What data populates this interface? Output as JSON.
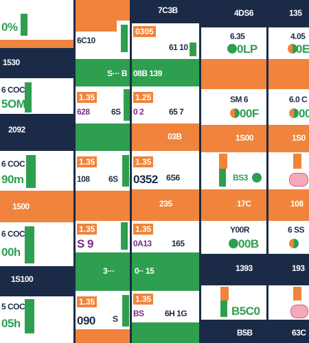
{
  "col1": {
    "r1_value": "0%",
    "r2_header": "1530",
    "r3_code": "6 COC",
    "r3_value": "5OM",
    "r4_header": "2092",
    "r5_code": "6 COC",
    "r5_value": "90m",
    "r6_header": "1500",
    "r7_code": "6 COC",
    "r7_value": "00h",
    "r8_header": "1S100",
    "r9_code": "5 COC",
    "r9_value": "05h"
  },
  "col2": {
    "r1_label": "6C10",
    "r2_label": "S··· B",
    "r3_tag": "1.35",
    "r3_value": "628",
    "r3_side": "6S",
    "r5_tag": "1.35",
    "r5_value": "108",
    "r5_side": "6S",
    "r7_tag": "1.35",
    "r7_value": "S 9",
    "r8_label": "3···",
    "r9_tag": "1.35",
    "r9_value": "090",
    "r9_side": "S"
  },
  "col3": {
    "r0_header": "7C3B",
    "r1_tag": "0305",
    "r1_value": "61 10",
    "r2_label": "08B 139",
    "r3_tag": "1.25",
    "r3_value": "0 2",
    "r3_side": "65 7",
    "r4_header": "03B",
    "r5_tag": "1.35",
    "r5_value": "0352",
    "r5_side": "6S6",
    "r6_header": "235",
    "r7_tag": "1.35",
    "r7_value": "0A13",
    "r7_side": "165",
    "r8_label": "0·· 15",
    "r9_tag": "1.35",
    "r9_value": "BS",
    "r9_side": "6H 1G"
  },
  "col4": {
    "r0_header": "4DS6",
    "r1_code": "6.35",
    "r1_value": "0LP",
    "r2_header": "",
    "r3_code": "SM 6",
    "r3_value": "00F",
    "r4_header": "1S00",
    "r5_value": "BS3",
    "r6_header": "17C",
    "r7_code": "Y00R",
    "r7_value": "00B",
    "r8_header": "1393",
    "r9_value": "B5C0",
    "r10_header": "B5B"
  },
  "col5": {
    "r0_header": "135",
    "r1_code": "4.05",
    "r1_value": "0E",
    "r3_code": "6.0 C",
    "r3_value": "00",
    "r4_header": "1S0",
    "r6_header": "108",
    "r7_code": "6 SS",
    "r8_header": "193",
    "r10_header": "63C"
  }
}
